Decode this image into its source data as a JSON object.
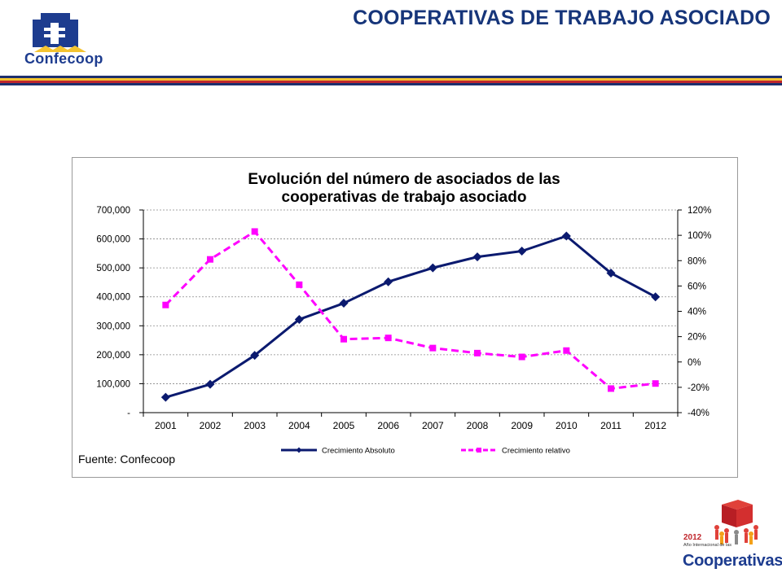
{
  "header": {
    "title": "COOPERATIVAS DE TRABAJO ASOCIADO",
    "logo_text": "Confecoop"
  },
  "colors": {
    "brand_blue": "#16357a",
    "bar_yellow": "#f4c430",
    "bar_red": "#c0272d",
    "series_absolute": "#0b1a6f",
    "series_relative": "#ff00ff"
  },
  "chart_data": {
    "type": "line",
    "title": "Evolución del número de asociados de las",
    "title_line2": "cooperativas de trabajo asociado",
    "categories": [
      "2001",
      "2002",
      "2003",
      "2004",
      "2005",
      "2006",
      "2007",
      "2008",
      "2009",
      "2010",
      "2011",
      "2012"
    ],
    "series": [
      {
        "name": "Crecimiento Absoluto",
        "axis": "left",
        "color": "#0b1a6f",
        "marker": "diamond",
        "values": [
          53000,
          98000,
          198000,
          322000,
          378000,
          452000,
          500000,
          538000,
          558000,
          610000,
          482000,
          400000
        ]
      },
      {
        "name": "Crecimiento relativo",
        "axis": "right",
        "color": "#ff00ff",
        "marker": "square",
        "dashed": true,
        "values": [
          0.45,
          0.81,
          1.03,
          0.61,
          0.18,
          0.19,
          0.11,
          0.07,
          0.04,
          0.09,
          -0.21,
          -0.17
        ]
      }
    ],
    "y_left": {
      "lim": [
        0,
        700000
      ],
      "ticks": [
        0,
        100000,
        200000,
        300000,
        400000,
        500000,
        600000,
        700000
      ],
      "tick_labels": [
        "-",
        "100,000",
        "200,000",
        "300,000",
        "400,000",
        "500,000",
        "600,000",
        "700,000"
      ]
    },
    "y_right": {
      "lim": [
        -0.4,
        1.2
      ],
      "ticks": [
        -0.4,
        -0.2,
        0,
        0.2,
        0.4,
        0.6,
        0.8,
        1.0,
        1.2
      ],
      "tick_labels": [
        "-40%",
        "-20%",
        "0%",
        "20%",
        "40%",
        "60%",
        "80%",
        "100%",
        "120%"
      ]
    },
    "grid": "horizontal dashed",
    "legend": "bottom",
    "source": "Fuente: Confecoop"
  },
  "footer_logo": {
    "year": "2012",
    "subtitle": "Año Internacional de las",
    "name": "Cooperativas"
  }
}
